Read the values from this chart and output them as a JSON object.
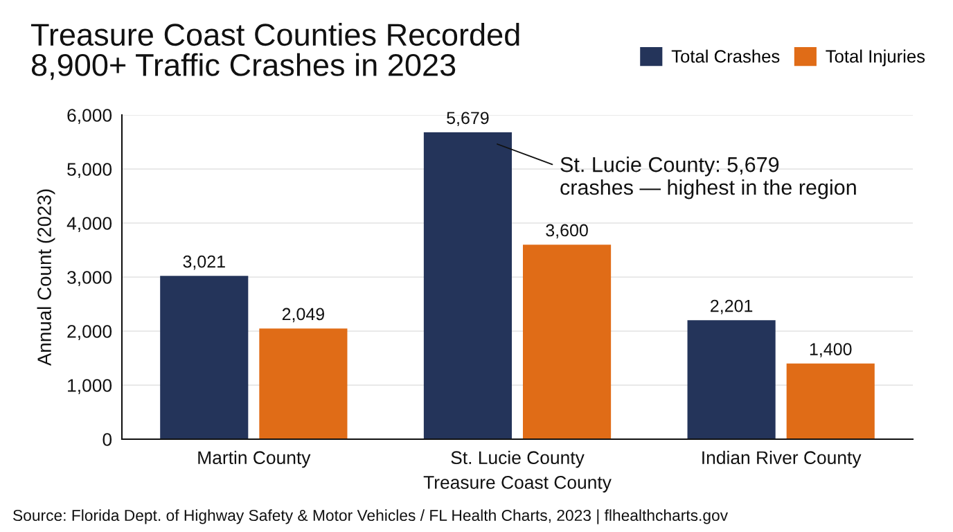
{
  "chart_data": {
    "type": "bar",
    "title": "Treasure Coast Counties Recorded\n8,900+ Traffic Crashes in 2023",
    "xlabel": "Treasure Coast County",
    "ylabel": "Annual Count (2023)",
    "categories": [
      "Martin County",
      "St. Lucie County",
      "Indian River County"
    ],
    "series": [
      {
        "name": "Total Crashes",
        "color": "#24345a",
        "values": [
          3021,
          5679,
          2201
        ],
        "value_labels": [
          "3,021",
          "5,679",
          "2,201"
        ]
      },
      {
        "name": "Total Injuries",
        "color": "#e06c17",
        "values": [
          2049,
          3600,
          1400
        ],
        "value_labels": [
          "2,049",
          "3,600",
          "1,400"
        ]
      }
    ],
    "ylim": [
      0,
      6000
    ],
    "yticks": [
      0,
      {
        "value": 1000,
        "label": "1,000"
      },
      {
        "value": 2000,
        "label": "2,000"
      },
      {
        "value": 3000,
        "label": "3,000"
      },
      {
        "value": 4000,
        "label": "4,000"
      },
      {
        "value": 5000,
        "label": "5,000"
      },
      {
        "value": 6000,
        "label": "6,000"
      }
    ],
    "grid": "y",
    "legend": "top right",
    "annotations": [
      "St. Lucie County: 5,679\ncrashes — highest in the region",
      "Source: Florida Dept. of Highway Safety & Motor Vehicles / FL Health Charts, 2023 | flhealthcharts.gov"
    ]
  }
}
